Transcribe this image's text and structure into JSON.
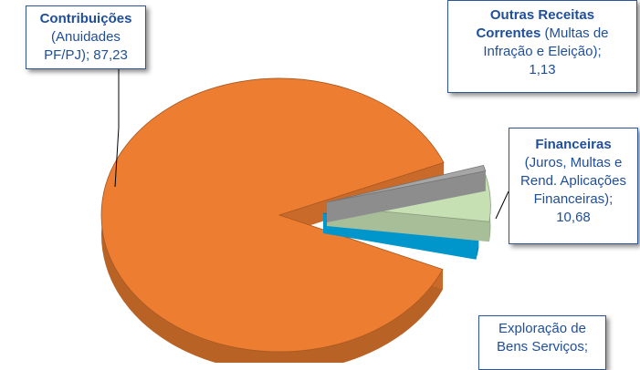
{
  "chart_data": {
    "type": "pie",
    "style": "3d-exploded",
    "slices": [
      {
        "label_bold": "Contribuições",
        "label_rest": "(Anuidades PF/PJ)",
        "value": 87.23,
        "value_text": "87,23",
        "color": "#ed7d31"
      },
      {
        "label_bold": "Financeiras",
        "label_rest": "(Juros, Multas e Rend. Aplicações Financeiras)",
        "value": 10.68,
        "value_text": "10,68",
        "color": "#c6e0b4"
      },
      {
        "label_bold": "Outras Receitas Correntes",
        "label_rest": "(Multas de Infração e Eleição)",
        "value": 1.13,
        "value_text": "1,13",
        "color": "#a6a6a6"
      },
      {
        "label_bold": "",
        "label_rest": "Exploração de Bens Serviços;",
        "value": 0.96,
        "value_text": "",
        "color": "#00b0f0"
      }
    ]
  },
  "labels": {
    "contrib_bold": "Contribuições",
    "contrib_line2": "(Anuidades",
    "contrib_line3": "PF/PJ);  87,23",
    "outras_bold1": "Outras Receitas",
    "outras_bold2": "Correntes",
    "outras_rest1": " (Multas de",
    "outras_line3": "Infração e Eleição);",
    "outras_line4": "1,13",
    "financ_bold": "Financeiras",
    "financ_line2": "(Juros, Multas e",
    "financ_line3": "Rend. Aplicações",
    "financ_line4": "Financeiras);",
    "financ_line5": "10,68",
    "explor_line1": "Exploração de",
    "explor_line2": "Bens Serviços;"
  }
}
